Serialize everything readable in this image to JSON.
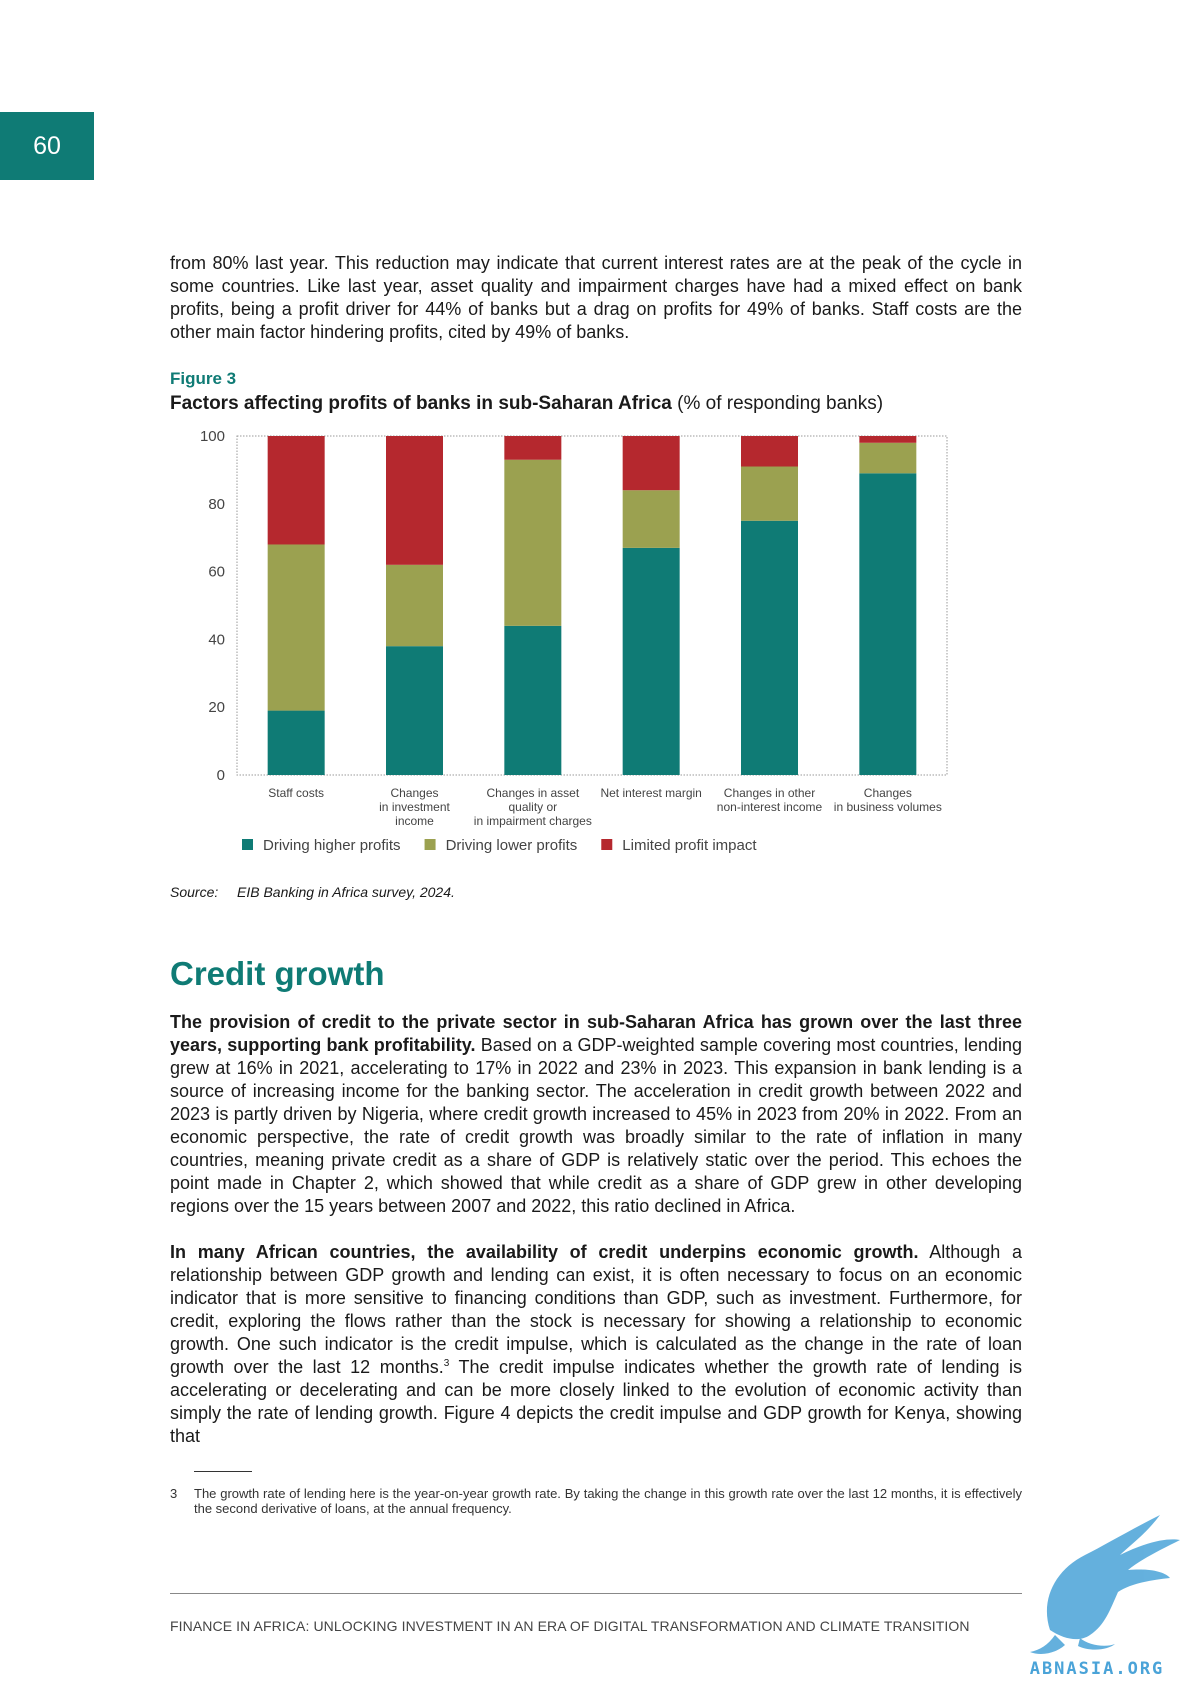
{
  "page_number": "60",
  "intro_paragraph": "from 80% last year. This reduction may indicate that current interest rates are at the peak of the cycle in some countries. Like last year, asset quality and impairment charges have had a mixed effect on bank profits, being a profit driver for 44% of banks but a drag on profits for 49% of banks. Staff costs are the other main factor hindering profits, cited by 49% of banks.",
  "figure": {
    "label": "Figure 3",
    "title_bold": "Factors affecting profits of banks in sub-Saharan Africa",
    "title_rest": " (% of responding banks)",
    "source_label": "Source:",
    "source_text": "EIB Banking in Africa survey, 2024."
  },
  "chart_data": {
    "type": "bar",
    "stacked": true,
    "ylim": [
      0,
      100
    ],
    "yticks": [
      0,
      20,
      40,
      60,
      80,
      100
    ],
    "categories": [
      [
        "Staff costs"
      ],
      [
        "Changes",
        "in investment",
        "income"
      ],
      [
        "Changes in asset",
        "quality or",
        "in impairment charges"
      ],
      [
        "Net interest margin"
      ],
      [
        "Changes in other",
        "non-interest income"
      ],
      [
        "Changes",
        "in business volumes"
      ]
    ],
    "series": [
      {
        "name": "Driving higher profits",
        "color": "#0f7b75",
        "values": [
          19,
          38,
          44,
          67,
          75,
          89
        ]
      },
      {
        "name": "Driving lower profits",
        "color": "#9ba150",
        "values": [
          49,
          24,
          49,
          17,
          16,
          9
        ]
      },
      {
        "name": "Limited profit impact",
        "color": "#b5282e",
        "values": [
          32,
          38,
          7,
          16,
          9,
          2
        ]
      }
    ],
    "grid": false,
    "legend_position": "bottom"
  },
  "section": {
    "title": "Credit growth",
    "p1_bold": "The provision of credit to the private sector in sub-Saharan Africa has grown over the last three years, supporting bank profitability.",
    "p1_rest": " Based on a GDP-weighted sample covering most countries, lending grew at 16% in 2021, accelerating to 17% in 2022 and 23% in 2023. This expansion in bank lending is a source of increasing income for the banking sector. The acceleration in credit growth between 2022 and 2023 is partly driven by Nigeria, where credit growth increased to 45% in 2023 from 20% in 2022. From an economic perspective, the rate of credit growth was broadly similar to the rate of inflation in many countries, meaning private credit as a share of GDP is relatively static over the period. This echoes the point made in Chapter 2, which showed that while credit as a share of GDP grew in other developing regions over the 15 years between 2007 and 2022, this ratio declined in Africa.",
    "p2_bold": "In many African countries, the availability of credit underpins economic growth.",
    "p2_a": " Although a relationship between GDP growth and lending can exist, it is often necessary to focus on an economic indicator that is more sensitive to financing conditions than GDP, such as investment. Furthermore, for credit, exploring the flows rather than the stock is necessary for showing a relationship to economic growth. One such indicator is the credit impulse, which is calculated as the change in the rate of loan growth over the last 12 months.",
    "p2_sup": "3",
    "p2_b": " The credit impulse indicates whether the growth rate of lending is accelerating or decelerating and can be more closely linked to the evolution of economic activity than simply the rate of lending growth. Figure 4 depicts the credit impulse and GDP growth for Kenya, showing that"
  },
  "footnote": {
    "number": "3",
    "text": "The growth rate of lending here is the year-on-year growth rate. By taking the change in this growth rate over the last 12 months, it is effectively the second derivative of loans, at the annual frequency."
  },
  "footer": "FINANCE IN AFRICA: UNLOCKING INVESTMENT IN AN ERA OF DIGITAL TRANSFORMATION AND CLIMATE TRANSITION",
  "watermark": {
    "text": "ABNASIA.ORG",
    "icon": "griffin-logo-icon",
    "color": "#4aa3d8"
  }
}
